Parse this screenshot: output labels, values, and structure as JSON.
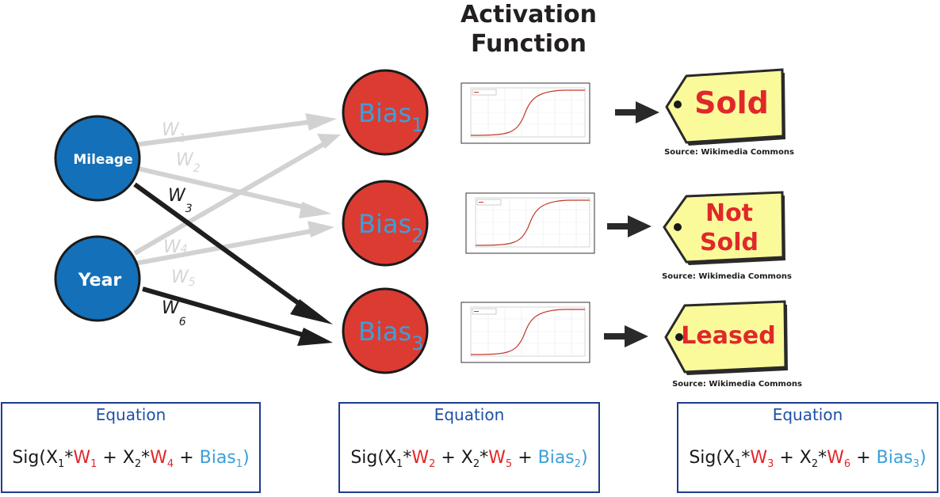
{
  "title": {
    "line1": "Activation",
    "line2": "Function"
  },
  "inputs": [
    {
      "label": "Mileage"
    },
    {
      "label": "Year"
    }
  ],
  "weights": [
    "W",
    "W",
    "W",
    "W",
    "W",
    "W"
  ],
  "weight_subs": [
    "1",
    "2",
    "3",
    "4",
    "5",
    "6"
  ],
  "bias_nodes": [
    {
      "label": "Bias",
      "sub": "1"
    },
    {
      "label": "Bias",
      "sub": "2"
    },
    {
      "label": "Bias",
      "sub": "3"
    }
  ],
  "outputs": [
    {
      "lines": [
        "Sold"
      ],
      "source": "Source: Wikimedia Commons"
    },
    {
      "lines": [
        "Not",
        "Sold"
      ],
      "source": "Source: Wikimedia Commons"
    },
    {
      "lines": [
        "Leased"
      ],
      "source": "Source: Wikimedia Commons"
    }
  ],
  "equation_heading": "Equation",
  "equations": [
    {
      "x1": "X",
      "x1_sub": "1",
      "w_a": "W",
      "w_a_sub": "1",
      "x2": "X",
      "x2_sub": "2",
      "w_b": "W",
      "w_b_sub": "4",
      "bias": "Bias",
      "bias_sub": "1"
    },
    {
      "x1": "X",
      "x1_sub": "1",
      "w_a": "W",
      "w_a_sub": "2",
      "x2": "X",
      "x2_sub": "2",
      "w_b": "W",
      "w_b_sub": "5",
      "bias": "Bias",
      "bias_sub": "2"
    },
    {
      "x1": "X",
      "x1_sub": "1",
      "w_a": "W",
      "w_a_sub": "3",
      "x2": "X",
      "x2_sub": "2",
      "w_b": "W",
      "w_b_sub": "6",
      "bias": "Bias",
      "bias_sub": "3"
    }
  ],
  "colors": {
    "input_fill": "#1470b8",
    "bias_fill": "#dc3b32",
    "bias_text": "#3d9fd8",
    "tag_fill": "#fbfa9b",
    "tag_text": "#e0282a",
    "weight_color": "#e0282a",
    "bias_eq_color": "#3aa0d8",
    "box_border": "#1b3c8c",
    "heading_color": "#1f4fa8"
  },
  "icons": [
    "sigmoid-plot-icon",
    "right-arrow-icon",
    "price-tag-icon"
  ]
}
